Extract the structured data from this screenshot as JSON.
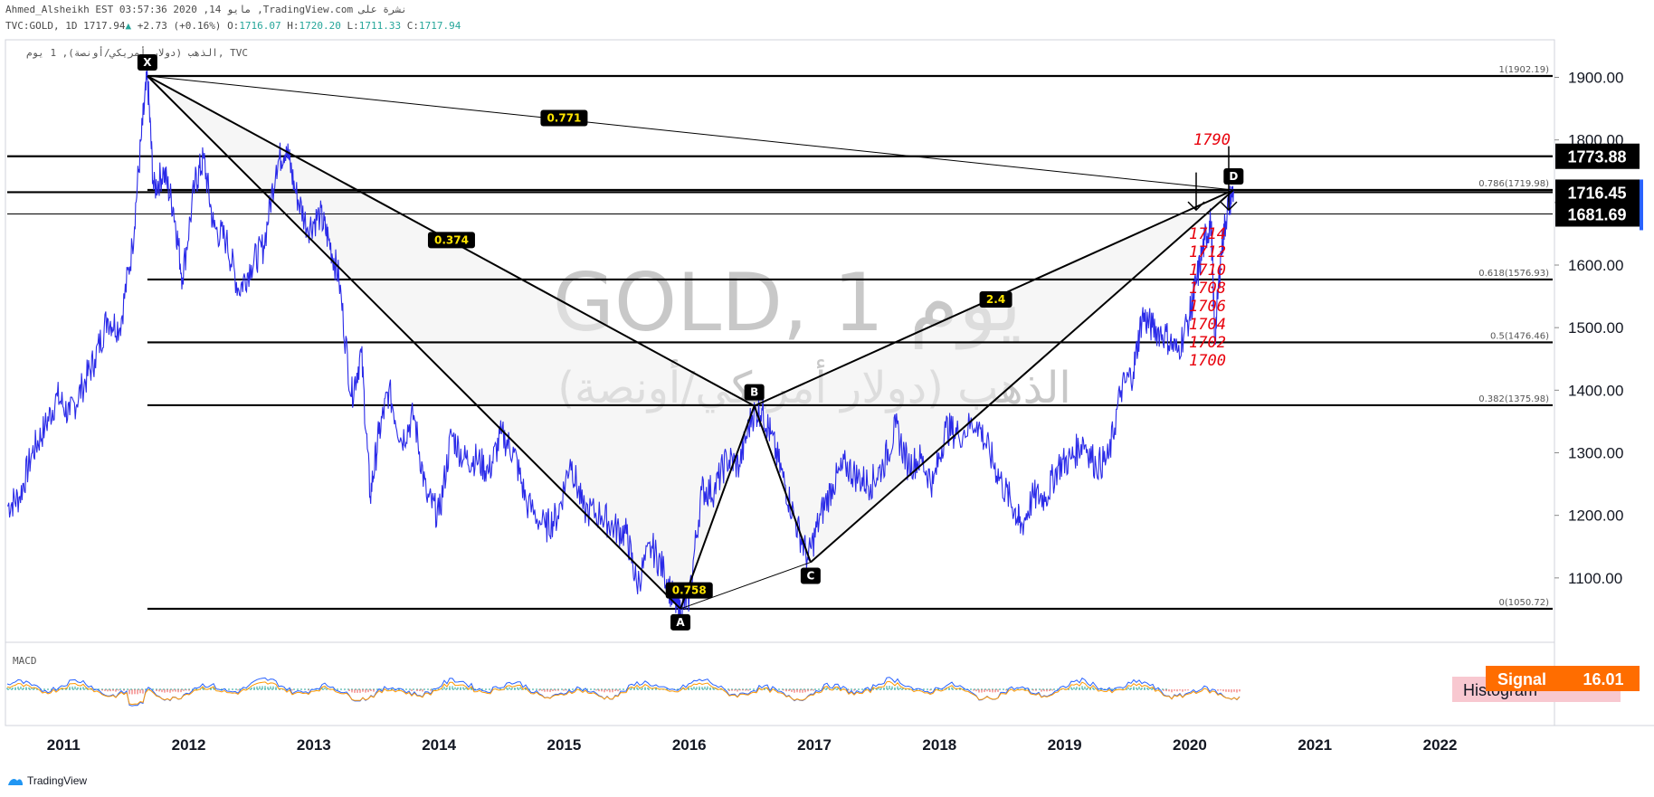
{
  "header": {
    "line1": "Ahmed_Alsheikh EST 03:57:36 2020 ,14 مايو ,TradingView.com نشرة على",
    "symbol": "TVC:GOLD, 1D",
    "last": "1717.94",
    "change": "+2.73 (+0.16%)",
    "o_label": "O:",
    "o": "1716.07",
    "h_label": "H:",
    "h": "1720.20",
    "l_label": "L:",
    "l": "1711.33",
    "c_label": "C:",
    "c": "1717.94"
  },
  "legend_title": "الذهب (دولار أمريكي/أونصة), 1 يوم, TVC",
  "watermark": {
    "line1": "GOLD, 1 يوم",
    "line2": "الذهب (دولار أمريكي/أونصة)"
  },
  "colors": {
    "price": "#2a2ae8",
    "fib": "#000000",
    "note": "#e8000b",
    "tag": "#000000",
    "signal": "#ff6d00",
    "histogram": "#f8c8d0"
  },
  "chart_data": {
    "type": "line",
    "title": "",
    "xlabel": "",
    "ylabel": "",
    "x_ticks": [
      "2011",
      "2012",
      "2013",
      "2014",
      "2015",
      "2016",
      "2017",
      "2018",
      "2019",
      "2020",
      "2021",
      "2022"
    ],
    "y_ticks": [
      "1100.00",
      "1200.00",
      "1300.00",
      "1400.00",
      "1500.00",
      "1600.00",
      "1700.00",
      "1800.00",
      "1900.00"
    ],
    "ylim": [
      1000,
      1960
    ],
    "xlim": [
      2010.55,
      2022.9
    ],
    "series": [
      {
        "values": [
          [
            2010.55,
            1215
          ],
          [
            2010.65,
            1230
          ],
          [
            2010.75,
            1300
          ],
          [
            2010.85,
            1340
          ],
          [
            2010.95,
            1390
          ],
          [
            2011.05,
            1360
          ],
          [
            2011.15,
            1405
          ],
          [
            2011.25,
            1450
          ],
          [
            2011.35,
            1515
          ],
          [
            2011.45,
            1500
          ],
          [
            2011.55,
            1630
          ],
          [
            2011.62,
            1800
          ],
          [
            2011.67,
            1902
          ],
          [
            2011.72,
            1720
          ],
          [
            2011.8,
            1750
          ],
          [
            2011.88,
            1690
          ],
          [
            2011.95,
            1580
          ],
          [
            2012.05,
            1730
          ],
          [
            2012.12,
            1770
          ],
          [
            2012.2,
            1660
          ],
          [
            2012.3,
            1640
          ],
          [
            2012.4,
            1560
          ],
          [
            2012.5,
            1600
          ],
          [
            2012.6,
            1630
          ],
          [
            2012.7,
            1760
          ],
          [
            2012.78,
            1790
          ],
          [
            2012.85,
            1720
          ],
          [
            2012.95,
            1660
          ],
          [
            2013.05,
            1680
          ],
          [
            2013.12,
            1640
          ],
          [
            2013.2,
            1580
          ],
          [
            2013.3,
            1390
          ],
          [
            2013.38,
            1460
          ],
          [
            2013.45,
            1230
          ],
          [
            2013.52,
            1330
          ],
          [
            2013.6,
            1400
          ],
          [
            2013.7,
            1320
          ],
          [
            2013.8,
            1360
          ],
          [
            2013.9,
            1230
          ],
          [
            2014.0,
            1200
          ],
          [
            2014.1,
            1330
          ],
          [
            2014.2,
            1290
          ],
          [
            2014.3,
            1290
          ],
          [
            2014.4,
            1270
          ],
          [
            2014.5,
            1330
          ],
          [
            2014.6,
            1300
          ],
          [
            2014.7,
            1220
          ],
          [
            2014.85,
            1180
          ],
          [
            2014.95,
            1200
          ],
          [
            2015.05,
            1290
          ],
          [
            2015.15,
            1210
          ],
          [
            2015.3,
            1200
          ],
          [
            2015.4,
            1180
          ],
          [
            2015.5,
            1170
          ],
          [
            2015.58,
            1090
          ],
          [
            2015.7,
            1150
          ],
          [
            2015.8,
            1110
          ],
          [
            2015.88,
            1060
          ],
          [
            2015.93,
            1050
          ],
          [
            2016.0,
            1070
          ],
          [
            2016.1,
            1240
          ],
          [
            2016.2,
            1240
          ],
          [
            2016.3,
            1290
          ],
          [
            2016.4,
            1280
          ],
          [
            2016.5,
            1360
          ],
          [
            2016.58,
            1370
          ],
          [
            2016.65,
            1330
          ],
          [
            2016.75,
            1260
          ],
          [
            2016.85,
            1190
          ],
          [
            2016.95,
            1130
          ],
          [
            2017.05,
            1200
          ],
          [
            2017.15,
            1250
          ],
          [
            2017.25,
            1280
          ],
          [
            2017.35,
            1260
          ],
          [
            2017.45,
            1250
          ],
          [
            2017.55,
            1280
          ],
          [
            2017.65,
            1340
          ],
          [
            2017.75,
            1280
          ],
          [
            2017.85,
            1290
          ],
          [
            2017.95,
            1250
          ],
          [
            2018.05,
            1340
          ],
          [
            2018.15,
            1330
          ],
          [
            2018.3,
            1350
          ],
          [
            2018.4,
            1300
          ],
          [
            2018.5,
            1250
          ],
          [
            2018.6,
            1210
          ],
          [
            2018.65,
            1180
          ],
          [
            2018.75,
            1230
          ],
          [
            2018.85,
            1230
          ],
          [
            2018.95,
            1280
          ],
          [
            2019.05,
            1290
          ],
          [
            2019.15,
            1320
          ],
          [
            2019.25,
            1280
          ],
          [
            2019.35,
            1290
          ],
          [
            2019.45,
            1400
          ],
          [
            2019.55,
            1430
          ],
          [
            2019.62,
            1520
          ],
          [
            2019.7,
            1500
          ],
          [
            2019.8,
            1490
          ],
          [
            2019.9,
            1460
          ],
          [
            2020.0,
            1520
          ],
          [
            2020.05,
            1570
          ],
          [
            2020.12,
            1640
          ],
          [
            2020.17,
            1670
          ],
          [
            2020.2,
            1480
          ],
          [
            2020.25,
            1620
          ],
          [
            2020.3,
            1690
          ],
          [
            2020.35,
            1720
          ]
        ]
      }
    ],
    "pattern_points": [
      {
        "label": "X",
        "x": 2011.67,
        "y": 1902.19
      },
      {
        "label": "A",
        "x": 2015.93,
        "y": 1050.72
      },
      {
        "label": "B",
        "x": 2016.52,
        "y": 1375
      },
      {
        "label": "C",
        "x": 2016.97,
        "y": 1125
      },
      {
        "label": "D",
        "x": 2020.35,
        "y": 1719.98
      }
    ],
    "pattern_ratios": [
      {
        "label": "0.771",
        "x": 2015.0,
        "y": 1835
      },
      {
        "label": "0.374",
        "x": 2014.1,
        "y": 1640
      },
      {
        "label": "0.758",
        "x": 2016.0,
        "y": 1080
      },
      {
        "label": "2.4",
        "x": 2018.45,
        "y": 1545
      }
    ],
    "fib_levels": [
      {
        "label": "1(1902.19)",
        "value": 1902.19
      },
      {
        "label": "0.786(1719.98)",
        "value": 1719.98
      },
      {
        "label": "0.618(1576.93)",
        "value": 1576.93
      },
      {
        "label": "0.5(1476.46)",
        "value": 1476.46
      },
      {
        "label": "0.382(1375.98)",
        "value": 1375.98
      },
      {
        "label": "0(1050.72)",
        "value": 1050.72
      }
    ],
    "horizontal_levels": [
      1773.88,
      1681.69
    ],
    "price_tags": [
      {
        "label": "1773.88",
        "value": 1773.88
      },
      {
        "label": "1716.45",
        "value": 1716.45
      },
      {
        "label": "1681.69",
        "value": 1681.69
      }
    ],
    "notes_top": "1790",
    "notes_list": [
      "1714",
      "1712",
      "1710",
      "1708",
      "1706",
      "1704",
      "1702",
      "1700"
    ],
    "indicator": {
      "name": "MACD",
      "signal_label": "Signal",
      "signal_value": "16.01",
      "histogram_label": "Histogram"
    }
  },
  "footer": {
    "brand": "TradingView"
  }
}
